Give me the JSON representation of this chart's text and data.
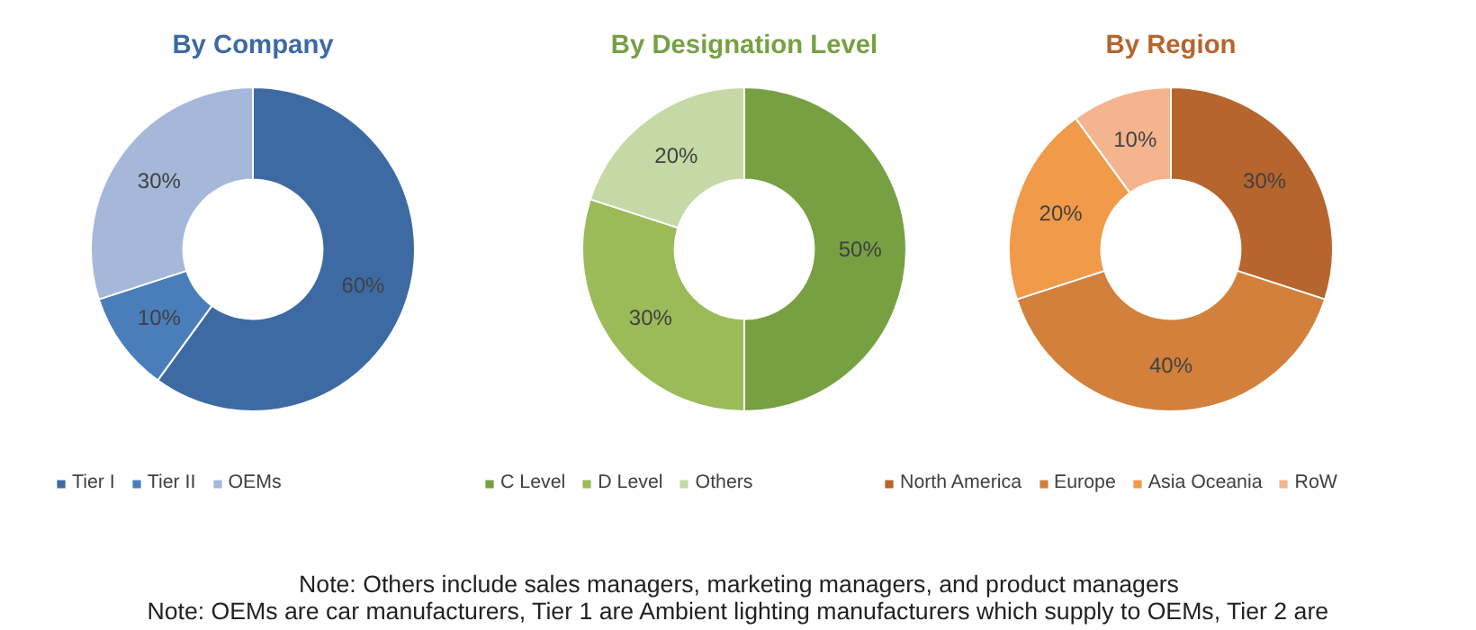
{
  "chart_data": [
    {
      "type": "donut",
      "title": "By Company",
      "categories": [
        "Tier I",
        "Tier II",
        "OEMs"
      ],
      "values": [
        60,
        10,
        30
      ],
      "colors": [
        "#3d6aa3",
        "#4a7ebb",
        "#a5b8d9"
      ],
      "value_labels": [
        "60%",
        "10%",
        "30%"
      ],
      "legend": "bottom"
    },
    {
      "type": "donut",
      "title": "By Designation Level",
      "categories": [
        "C Level",
        "D Level",
        "Others"
      ],
      "values": [
        50,
        30,
        20
      ],
      "colors": [
        "#77a043",
        "#9bbb59",
        "#c4d9a5"
      ],
      "value_labels": [
        "50%",
        "30%",
        "20%"
      ],
      "legend": "bottom"
    },
    {
      "type": "donut",
      "title": "By Region",
      "categories": [
        "North America",
        "Europe",
        "Asia Oceania",
        "RoW"
      ],
      "values": [
        30,
        40,
        20,
        10
      ],
      "colors": [
        "#b5652d",
        "#d2803c",
        "#f09a4a",
        "#f4b48e"
      ],
      "value_labels": [
        "30%",
        "40%",
        "20%",
        "10%"
      ],
      "legend": "bottom",
      "annotations": [
        "Note: Others include sales managers, marketing managers, and product managers",
        "Note: OEMs are car manufacturers, Tier 1 are Ambient lighting manufacturers which supply to OEMs, Tier 2 are"
      ]
    }
  ]
}
